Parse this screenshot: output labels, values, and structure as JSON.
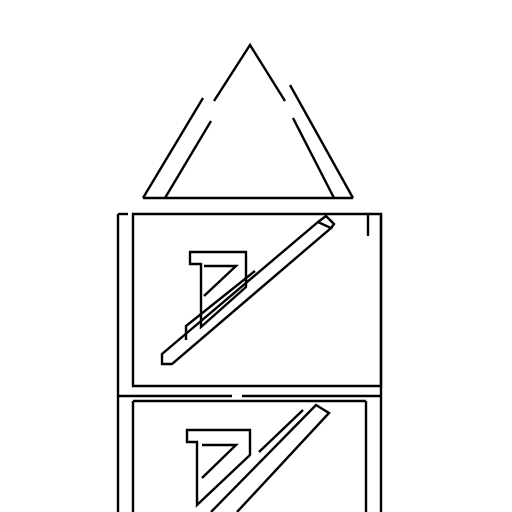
{
  "colors": {
    "background": "#ffffff",
    "ink": "#000000"
  },
  "shapes": [
    {
      "name": "triangle-outline",
      "kind": "outline",
      "fill": "none"
    },
    {
      "name": "upper-panel-frame",
      "kind": "outline",
      "fill": "none"
    },
    {
      "name": "upper-pencil-symbol",
      "kind": "outline",
      "fill": "none"
    },
    {
      "name": "lower-panel-frame",
      "kind": "outline",
      "fill": "none"
    },
    {
      "name": "lower-pencil-symbol",
      "kind": "outline",
      "fill": "none"
    }
  ]
}
